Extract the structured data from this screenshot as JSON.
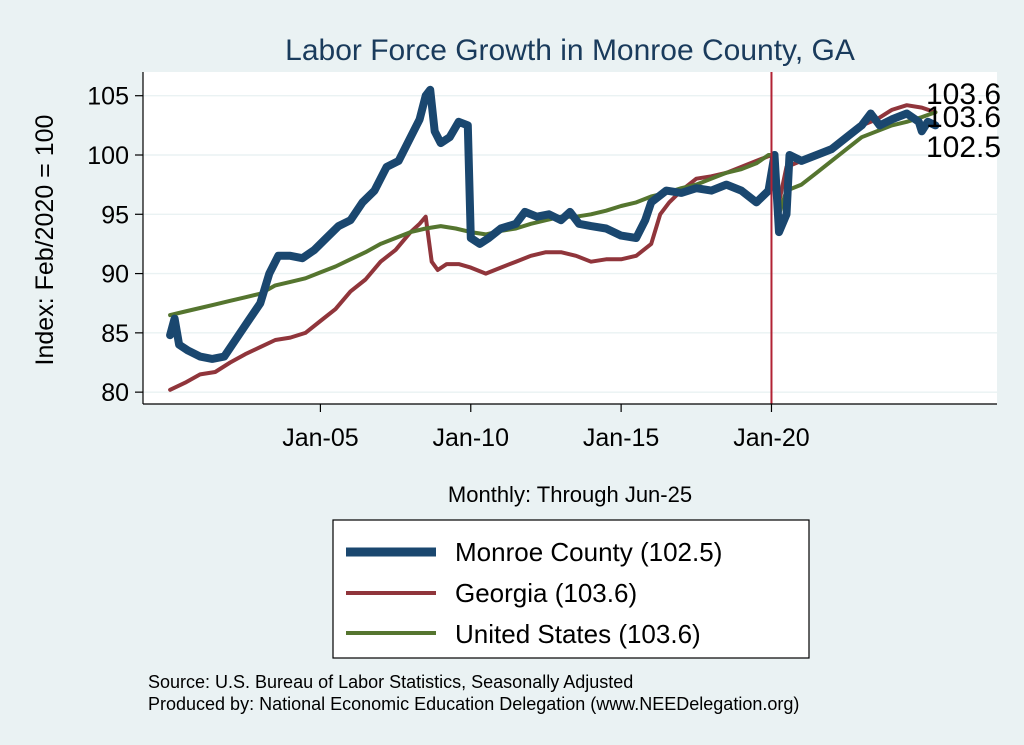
{
  "chart_data": {
    "type": "line",
    "title": "Labor Force Growth in Monroe  County, GA",
    "xlabel": "Monthly: Through Jun-25",
    "ylabel": "Index: Feb/2020 = 100",
    "ylim": [
      79,
      107
    ],
    "yticks": [
      80,
      85,
      90,
      95,
      100,
      105
    ],
    "xticks": [
      {
        "label": "Jan-05",
        "value": 2005.0
      },
      {
        "label": "Jan-10",
        "value": 2010.0
      },
      {
        "label": "Jan-15",
        "value": 2015.0
      },
      {
        "label": "Jan-20",
        "value": 2020.0
      }
    ],
    "vline": {
      "value": 2020.0,
      "color": "#b22234"
    },
    "grid": true,
    "end_labels": [
      "103.6",
      "103.6",
      "102.5"
    ],
    "series": [
      {
        "name": "Monroe  County (102.5)",
        "color": "#1a476f",
        "points": [
          [
            2000.0,
            84.8
          ],
          [
            2000.15,
            86.2
          ],
          [
            2000.3,
            84.0
          ],
          [
            2000.6,
            83.5
          ],
          [
            2001.0,
            83.0
          ],
          [
            2001.4,
            82.8
          ],
          [
            2001.8,
            83.0
          ],
          [
            2002.2,
            84.5
          ],
          [
            2002.6,
            86.0
          ],
          [
            2003.0,
            87.5
          ],
          [
            2003.3,
            90.0
          ],
          [
            2003.6,
            91.5
          ],
          [
            2004.0,
            91.5
          ],
          [
            2004.4,
            91.3
          ],
          [
            2004.8,
            92.0
          ],
          [
            2005.2,
            93.0
          ],
          [
            2005.6,
            94.0
          ],
          [
            2006.0,
            94.5
          ],
          [
            2006.4,
            96.0
          ],
          [
            2006.8,
            97.0
          ],
          [
            2007.2,
            99.0
          ],
          [
            2007.6,
            99.5
          ],
          [
            2008.0,
            101.5
          ],
          [
            2008.3,
            103.0
          ],
          [
            2008.5,
            105.0
          ],
          [
            2008.65,
            105.5
          ],
          [
            2008.8,
            102.0
          ],
          [
            2009.0,
            101.0
          ],
          [
            2009.3,
            101.5
          ],
          [
            2009.6,
            102.8
          ],
          [
            2009.9,
            102.5
          ],
          [
            2010.0,
            93.0
          ],
          [
            2010.3,
            92.5
          ],
          [
            2010.6,
            93.0
          ],
          [
            2011.0,
            93.8
          ],
          [
            2011.5,
            94.2
          ],
          [
            2011.8,
            95.2
          ],
          [
            2012.2,
            94.8
          ],
          [
            2012.6,
            95.0
          ],
          [
            2013.0,
            94.5
          ],
          [
            2013.3,
            95.2
          ],
          [
            2013.6,
            94.2
          ],
          [
            2014.0,
            94.0
          ],
          [
            2014.5,
            93.8
          ],
          [
            2015.0,
            93.2
          ],
          [
            2015.5,
            93.0
          ],
          [
            2015.8,
            94.5
          ],
          [
            2016.0,
            96.0
          ],
          [
            2016.5,
            97.0
          ],
          [
            2017.0,
            96.8
          ],
          [
            2017.5,
            97.2
          ],
          [
            2018.0,
            97.0
          ],
          [
            2018.5,
            97.5
          ],
          [
            2019.0,
            97.0
          ],
          [
            2019.5,
            96.0
          ],
          [
            2019.9,
            97.0
          ],
          [
            2020.1,
            100.0
          ],
          [
            2020.25,
            93.5
          ],
          [
            2020.5,
            95.0
          ],
          [
            2020.6,
            100.0
          ],
          [
            2021.0,
            99.5
          ],
          [
            2021.5,
            100.0
          ],
          [
            2022.0,
            100.5
          ],
          [
            2022.5,
            101.5
          ],
          [
            2023.0,
            102.5
          ],
          [
            2023.3,
            103.5
          ],
          [
            2023.6,
            102.5
          ],
          [
            2024.0,
            103.0
          ],
          [
            2024.5,
            103.5
          ],
          [
            2024.9,
            102.8
          ],
          [
            2025.0,
            102.0
          ],
          [
            2025.2,
            102.8
          ],
          [
            2025.45,
            102.5
          ]
        ]
      },
      {
        "name": "Georgia (103.6)",
        "color": "#90353b",
        "points": [
          [
            2000.0,
            80.2
          ],
          [
            2000.5,
            80.8
          ],
          [
            2001.0,
            81.5
          ],
          [
            2001.5,
            81.7
          ],
          [
            2002.0,
            82.5
          ],
          [
            2002.5,
            83.2
          ],
          [
            2003.0,
            83.8
          ],
          [
            2003.5,
            84.4
          ],
          [
            2004.0,
            84.6
          ],
          [
            2004.5,
            85.0
          ],
          [
            2005.0,
            86.0
          ],
          [
            2005.5,
            87.0
          ],
          [
            2006.0,
            88.5
          ],
          [
            2006.5,
            89.5
          ],
          [
            2007.0,
            91.0
          ],
          [
            2007.5,
            92.0
          ],
          [
            2008.0,
            93.5
          ],
          [
            2008.3,
            94.2
          ],
          [
            2008.5,
            94.8
          ],
          [
            2008.7,
            91.0
          ],
          [
            2008.9,
            90.3
          ],
          [
            2009.2,
            90.8
          ],
          [
            2009.6,
            90.8
          ],
          [
            2010.0,
            90.5
          ],
          [
            2010.5,
            90.0
          ],
          [
            2011.0,
            90.5
          ],
          [
            2011.5,
            91.0
          ],
          [
            2012.0,
            91.5
          ],
          [
            2012.5,
            91.8
          ],
          [
            2013.0,
            91.8
          ],
          [
            2013.5,
            91.5
          ],
          [
            2014.0,
            91.0
          ],
          [
            2014.5,
            91.2
          ],
          [
            2015.0,
            91.2
          ],
          [
            2015.5,
            91.5
          ],
          [
            2016.0,
            92.5
          ],
          [
            2016.3,
            95.0
          ],
          [
            2016.6,
            96.0
          ],
          [
            2017.0,
            97.0
          ],
          [
            2017.5,
            98.0
          ],
          [
            2018.0,
            98.2
          ],
          [
            2018.5,
            98.5
          ],
          [
            2019.0,
            99.0
          ],
          [
            2019.5,
            99.5
          ],
          [
            2020.0,
            100.0
          ],
          [
            2020.25,
            96.0
          ],
          [
            2020.5,
            99.0
          ],
          [
            2021.0,
            99.5
          ],
          [
            2021.5,
            100.0
          ],
          [
            2022.0,
            100.5
          ],
          [
            2022.5,
            101.5
          ],
          [
            2023.0,
            102.5
          ],
          [
            2023.5,
            103.0
          ],
          [
            2024.0,
            103.8
          ],
          [
            2024.5,
            104.2
          ],
          [
            2025.0,
            104.0
          ],
          [
            2025.45,
            103.6
          ]
        ]
      },
      {
        "name": "United States (103.6)",
        "color": "#55752f",
        "points": [
          [
            2000.0,
            86.5
          ],
          [
            2000.5,
            86.8
          ],
          [
            2001.0,
            87.1
          ],
          [
            2001.5,
            87.4
          ],
          [
            2002.0,
            87.7
          ],
          [
            2002.5,
            88.0
          ],
          [
            2003.0,
            88.3
          ],
          [
            2003.5,
            89.0
          ],
          [
            2004.0,
            89.3
          ],
          [
            2004.5,
            89.6
          ],
          [
            2005.0,
            90.1
          ],
          [
            2005.5,
            90.6
          ],
          [
            2006.0,
            91.2
          ],
          [
            2006.5,
            91.8
          ],
          [
            2007.0,
            92.5
          ],
          [
            2007.5,
            93.0
          ],
          [
            2008.0,
            93.5
          ],
          [
            2008.5,
            93.8
          ],
          [
            2009.0,
            94.0
          ],
          [
            2009.5,
            93.8
          ],
          [
            2010.0,
            93.5
          ],
          [
            2010.5,
            93.3
          ],
          [
            2011.0,
            93.6
          ],
          [
            2011.5,
            93.8
          ],
          [
            2012.0,
            94.2
          ],
          [
            2012.5,
            94.5
          ],
          [
            2013.0,
            94.8
          ],
          [
            2013.5,
            94.8
          ],
          [
            2014.0,
            95.0
          ],
          [
            2014.5,
            95.3
          ],
          [
            2015.0,
            95.7
          ],
          [
            2015.5,
            96.0
          ],
          [
            2016.0,
            96.5
          ],
          [
            2016.5,
            96.8
          ],
          [
            2017.0,
            97.2
          ],
          [
            2017.5,
            97.5
          ],
          [
            2018.0,
            98.0
          ],
          [
            2018.5,
            98.5
          ],
          [
            2019.0,
            98.8
          ],
          [
            2019.5,
            99.3
          ],
          [
            2019.9,
            100.0
          ],
          [
            2020.1,
            100.0
          ],
          [
            2020.25,
            95.0
          ],
          [
            2020.5,
            97.0
          ],
          [
            2021.0,
            97.5
          ],
          [
            2021.5,
            98.5
          ],
          [
            2022.0,
            99.5
          ],
          [
            2022.5,
            100.5
          ],
          [
            2023.0,
            101.5
          ],
          [
            2023.5,
            102.0
          ],
          [
            2024.0,
            102.5
          ],
          [
            2024.5,
            102.8
          ],
          [
            2025.0,
            103.2
          ],
          [
            2025.45,
            103.6
          ]
        ]
      }
    ],
    "legend": {
      "entries": [
        "Monroe  County (102.5)",
        "Georgia (103.6)",
        "United States (103.6)"
      ],
      "placement": "bottom-center"
    },
    "notes": [
      "Source: U.S. Bureau of Labor Statistics, Seasonally Adjusted",
      "Produced by: National Economic Education Delegation (www.NEEDelegation.org)"
    ]
  }
}
